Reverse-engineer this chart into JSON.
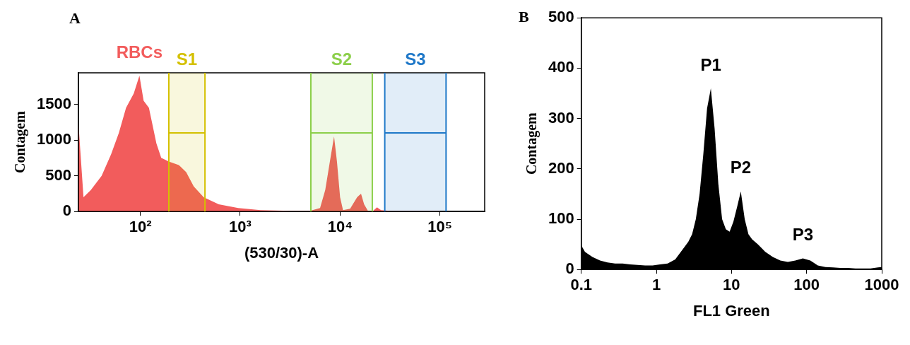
{
  "chart_data": [
    {
      "type": "area",
      "title": "A",
      "xlabel": "(530/30)-A",
      "ylabel": "Contagem",
      "log": "x",
      "series": [
        {
          "color": "#f25c5c",
          "x": [
            24,
            27,
            32,
            41,
            51,
            61,
            72,
            86,
            98,
            108,
            122,
            145,
            162,
            193,
            243,
            288,
            343,
            431,
            610,
            955,
            1600,
            3200,
            5000,
            6300,
            7100,
            7900,
            8700,
            9300,
            10000,
            10700,
            12600,
            14800,
            16200,
            17400,
            19000,
            21400,
            23400,
            25700,
            31600,
            100000
          ],
          "values": [
            1250,
            200,
            300,
            500,
            800,
            1100,
            1450,
            1650,
            1900,
            1550,
            1450,
            950,
            750,
            700,
            650,
            550,
            350,
            200,
            100,
            50,
            20,
            10,
            10,
            50,
            300,
            700,
            1050,
            700,
            200,
            20,
            40,
            200,
            250,
            100,
            10,
            10,
            60,
            20,
            10,
            10
          ]
        },
        {
          "type": "line",
          "color": "#d4c000",
          "x": [
            193,
            444
          ],
          "values": [
            1100,
            1100
          ]
        },
        {
          "type": "line",
          "color": "#8ccf4a",
          "x": [
            5100,
            21000
          ],
          "values": [
            1100,
            1100
          ]
        },
        {
          "type": "line",
          "color": "#1f78c8",
          "x": [
            28000,
            115000
          ],
          "values": [
            1100,
            1100
          ]
        }
      ],
      "xlim": [
        24,
        280000
      ],
      "xticks": [
        {
          "value": 100,
          "label": "10²"
        },
        {
          "value": 1000,
          "label": "10³"
        },
        {
          "value": 10000,
          "label": "10⁴"
        },
        {
          "value": 100000,
          "label": "10⁵"
        }
      ],
      "ylim": [
        0,
        1940
      ],
      "yticks": [
        0,
        500,
        1000,
        1500
      ],
      "bands": [
        {
          "axis": "x",
          "from": 193,
          "to": 444,
          "label": "S1",
          "color": "#d4c000"
        },
        {
          "axis": "x",
          "from": 5100,
          "to": 21000,
          "label": "S2",
          "color": "#8ccf4a"
        },
        {
          "axis": "x",
          "from": 28000,
          "to": 115000,
          "label": "S3",
          "color": "#1f78c8"
        }
      ],
      "ref_lines": [
        {
          "axis": "x",
          "value": 193,
          "color": "#d4c000"
        },
        {
          "axis": "x",
          "value": 444,
          "color": "#d4c000"
        },
        {
          "axis": "x",
          "value": 5100,
          "color": "#8ccf4a"
        },
        {
          "axis": "x",
          "value": 21000,
          "color": "#8ccf4a"
        },
        {
          "axis": "x",
          "value": 28000,
          "color": "#1f78c8"
        },
        {
          "axis": "x",
          "value": 115000,
          "color": "#1f78c8"
        }
      ],
      "annotations": [
        {
          "text": "RBCs",
          "x": 98,
          "y": 1900
        }
      ]
    },
    {
      "type": "area",
      "title": "B",
      "xlabel": "FL1 Green",
      "ylabel": "Contagem",
      "log": "x",
      "series": [
        {
          "color": "#000000",
          "x": [
            0.1,
            0.112,
            0.141,
            0.178,
            0.224,
            0.282,
            0.355,
            0.447,
            0.562,
            0.708,
            0.891,
            1.12,
            1.41,
            1.78,
            2.24,
            2.66,
            2.99,
            3.35,
            3.76,
            4.22,
            4.73,
            5.31,
            5.96,
            6.68,
            7.5,
            8.41,
            9.44,
            10.6,
            11.9,
            13.3,
            15,
            16.8,
            18.8,
            22.4,
            28.2,
            35.5,
            44.7,
            56.2,
            70.8,
            89.1,
            112,
            141,
            178,
            224,
            282,
            355,
            447,
            562,
            708,
            891,
            1000
          ],
          "values": [
            48,
            35,
            25,
            18,
            14,
            12,
            12,
            10,
            9,
            8,
            8,
            10,
            12,
            20,
            40,
            55,
            70,
            100,
            150,
            230,
            320,
            360,
            280,
            170,
            100,
            80,
            75,
            95,
            125,
            155,
            100,
            70,
            60,
            50,
            35,
            25,
            18,
            15,
            18,
            22,
            18,
            8,
            5,
            4,
            3,
            3,
            2,
            2,
            2,
            4,
            5
          ]
        }
      ],
      "xlim": [
        0.1,
        1000
      ],
      "xticks": [
        0.1,
        1,
        10,
        100,
        1000
      ],
      "ylim": [
        0,
        500
      ],
      "yticks": [
        0,
        100,
        200,
        300,
        400,
        500
      ],
      "annotations": [
        {
          "text": "P1",
          "x": 5.31,
          "y": 360
        },
        {
          "text": "P2",
          "x": 13.3,
          "y": 155
        },
        {
          "text": "P3",
          "x": 89.1,
          "y": 22
        }
      ]
    }
  ]
}
